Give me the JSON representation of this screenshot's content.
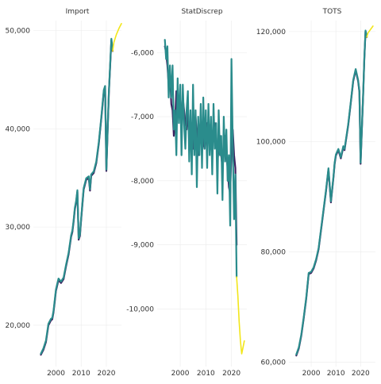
{
  "chart_data": [
    {
      "type": "line",
      "title": "Import",
      "xlabel": "",
      "ylabel": "",
      "x_ticks": [
        2000,
        2010,
        2020
      ],
      "y_ticks": [
        20000,
        30000,
        40000,
        50000
      ],
      "y_tick_labels": [
        "20,000",
        "30,000",
        "40,000",
        "50,000"
      ],
      "xlim": [
        1991,
        2026
      ],
      "ylim": [
        15800,
        51000
      ],
      "grid": true,
      "series": [
        {
          "role": "actual-dark",
          "color": "#3b1f5e",
          "x": [
            1994.0,
            1995.0,
            1996.0,
            1997.0,
            1998.0,
            1998.5,
            1999.0,
            2000.0,
            2001.0,
            2002.0,
            2003.0,
            2004.0,
            2005.0,
            2006.0,
            2006.5,
            2007.0,
            2007.5,
            2008.0,
            2008.5,
            2009.0,
            2009.5,
            2010.0,
            2011.0,
            2012.0,
            2013.0,
            2013.5,
            2014.0,
            2015.0,
            2016.0,
            2017.0,
            2018.0,
            2019.0,
            2019.5,
            2020.0,
            2021.0,
            2022.0,
            2022.5
          ],
          "values": [
            17000,
            17500,
            18300,
            20000,
            20500,
            20600,
            21300,
            23500,
            24600,
            24300,
            24700,
            26000,
            27200,
            29000,
            29500,
            30500,
            31800,
            32500,
            33600,
            28700,
            29100,
            30800,
            33800,
            34800,
            35000,
            33700,
            35200,
            35500,
            36500,
            38500,
            41000,
            43800,
            44200,
            35700,
            43500,
            49000,
            47900
          ]
        },
        {
          "role": "actual-teal",
          "color": "#2a8c8c",
          "x": [
            1994.0,
            1995.0,
            1996.0,
            1997.0,
            1998.0,
            1998.5,
            1999.0,
            2000.0,
            2001.0,
            2002.0,
            2003.0,
            2004.0,
            2005.0,
            2006.0,
            2006.5,
            2007.0,
            2007.5,
            2008.0,
            2008.5,
            2009.0,
            2009.5,
            2010.0,
            2011.0,
            2012.0,
            2013.0,
            2013.5,
            2014.0,
            2015.0,
            2016.0,
            2017.0,
            2018.0,
            2019.0,
            2019.5,
            2020.0,
            2021.0,
            2022.0,
            2022.5
          ],
          "values": [
            17100,
            17650,
            18450,
            20150,
            20650,
            20750,
            21450,
            23650,
            24750,
            24450,
            24850,
            26150,
            27350,
            29150,
            29650,
            30650,
            31950,
            32650,
            33750,
            28850,
            29250,
            30950,
            33950,
            34950,
            35150,
            33850,
            35350,
            35650,
            36650,
            38650,
            41150,
            43950,
            44350,
            35850,
            43650,
            49150,
            48050
          ]
        },
        {
          "role": "forecast",
          "color": "#f2e61a",
          "x": [
            2022.5,
            2023.0,
            2024.0,
            2025.0,
            2026.0
          ],
          "values": [
            47900,
            48800,
            49600,
            50200,
            50700
          ]
        }
      ]
    },
    {
      "type": "line",
      "title": "StatDiscrep",
      "xlabel": "",
      "ylabel": "",
      "x_ticks": [
        2000,
        2010,
        2020
      ],
      "y_ticks": [
        -10000,
        -9000,
        -8000,
        -7000,
        -6000
      ],
      "y_tick_labels": [
        "-10,000",
        "-9,000",
        "-8,000",
        "-7,000",
        "-6,000"
      ],
      "xlim": [
        1991,
        2026
      ],
      "ylim": [
        -10900,
        -5500
      ],
      "grid": true,
      "series": [
        {
          "role": "actual-dark",
          "color": "#3b1f5e",
          "x": [
            1994.0,
            1994.5,
            1995.0,
            1995.5,
            1996.0,
            1996.5,
            1997.0,
            1997.5,
            1998.0,
            1998.5,
            1999.0,
            1999.5,
            2000.0,
            2000.5,
            2001.0,
            2001.5,
            2002.0,
            2002.5,
            2003.0,
            2003.5,
            2004.0,
            2004.5,
            2005.0,
            2005.5,
            2006.0,
            2006.5,
            2007.0,
            2007.5,
            2008.0,
            2008.5,
            2009.0,
            2009.5,
            2010.0,
            2010.5,
            2011.0,
            2011.5,
            2012.0,
            2012.5,
            2013.0,
            2013.5,
            2014.0,
            2014.5,
            2015.0,
            2015.5,
            2016.0,
            2016.5,
            2017.0,
            2017.5,
            2018.0,
            2018.5,
            2019.0,
            2019.5,
            2020.0,
            2020.5,
            2021.0,
            2021.5,
            2022.0
          ],
          "values": [
            -5900,
            -6000,
            -6200,
            -6500,
            -6300,
            -6800,
            -6900,
            -7300,
            -7100,
            -6600,
            -6900,
            -6700,
            -6800,
            -7000,
            -6700,
            -6900,
            -7100,
            -7200,
            -6900,
            -7300,
            -7400,
            -7100,
            -7500,
            -7200,
            -7000,
            -7300,
            -7600,
            -7400,
            -7100,
            -7200,
            -7400,
            -7500,
            -7300,
            -7100,
            -7200,
            -7400,
            -7500,
            -7300,
            -7200,
            -7100,
            -7300,
            -7700,
            -7500,
            -7300,
            -7600,
            -7800,
            -7400,
            -7300,
            -7600,
            -7800,
            -8100,
            -8200,
            -7500,
            -7200,
            -7600,
            -7800,
            -9000
          ]
        },
        {
          "role": "actual-teal",
          "color": "#2a8c8c",
          "x": [
            1994.0,
            1994.5,
            1995.0,
            1995.5,
            1996.0,
            1996.5,
            1997.0,
            1997.5,
            1998.0,
            1998.5,
            1999.0,
            1999.5,
            2000.0,
            2000.5,
            2001.0,
            2001.5,
            2002.0,
            2002.5,
            2003.0,
            2003.5,
            2004.0,
            2004.5,
            2005.0,
            2005.5,
            2006.0,
            2006.5,
            2007.0,
            2007.5,
            2008.0,
            2008.5,
            2009.0,
            2009.5,
            2010.0,
            2010.5,
            2011.0,
            2011.5,
            2012.0,
            2012.5,
            2013.0,
            2013.5,
            2014.0,
            2014.5,
            2015.0,
            2015.5,
            2016.0,
            2016.5,
            2017.0,
            2017.5,
            2018.0,
            2018.5,
            2019.0,
            2019.5,
            2020.0,
            2020.5,
            2021.0,
            2021.5,
            2022.0
          ],
          "values": [
            -5800,
            -6100,
            -5900,
            -6700,
            -6200,
            -6700,
            -6200,
            -7200,
            -6900,
            -7600,
            -6400,
            -7100,
            -6500,
            -7600,
            -6500,
            -7100,
            -7500,
            -6900,
            -6600,
            -7700,
            -6900,
            -7900,
            -6500,
            -7600,
            -6900,
            -8100,
            -7000,
            -7600,
            -6800,
            -7800,
            -6700,
            -7500,
            -6900,
            -7800,
            -6800,
            -7600,
            -7000,
            -7900,
            -6800,
            -7500,
            -7100,
            -8200,
            -6900,
            -7600,
            -7300,
            -8300,
            -7000,
            -7700,
            -7200,
            -8000,
            -7600,
            -8700,
            -6100,
            -7400,
            -8600,
            -7900,
            -9500
          ]
        },
        {
          "role": "forecast",
          "color": "#f2e61a",
          "x": [
            2022.0,
            2022.5,
            2023.0,
            2023.5,
            2024.0,
            2024.5,
            2025.0
          ],
          "values": [
            -9500,
            -9800,
            -10200,
            -10500,
            -10700,
            -10600,
            -10500
          ]
        }
      ]
    },
    {
      "type": "line",
      "title": "TOTS",
      "xlabel": "",
      "ylabel": "",
      "x_ticks": [
        2000,
        2010,
        2020
      ],
      "y_ticks": [
        60000,
        80000,
        100000,
        120000
      ],
      "y_tick_labels": [
        "60,000",
        "80,000",
        "100,000",
        "120,000"
      ],
      "xlim": [
        1991,
        2026
      ],
      "ylim": [
        59200,
        122000
      ],
      "grid": true,
      "series": [
        {
          "role": "actual-dark",
          "color": "#3b1f5e",
          "x": [
            1994.0,
            1995.0,
            1996.0,
            1997.0,
            1998.0,
            1999.0,
            2000.0,
            2001.0,
            2002.0,
            2003.0,
            2004.0,
            2005.0,
            2006.0,
            2007.0,
            2008.0,
            2009.0,
            2009.5,
            2010.0,
            2011.0,
            2012.0,
            2013.0,
            2013.5,
            2014.0,
            2015.0,
            2016.0,
            2017.0,
            2018.0,
            2019.0,
            2019.5,
            2020.0,
            2021.0,
            2021.5,
            2022.0,
            2022.5
          ],
          "values": [
            61200,
            62500,
            64800,
            68000,
            71500,
            76000,
            76200,
            77000,
            78500,
            80500,
            84000,
            87500,
            91000,
            95000,
            89000,
            93500,
            96000,
            97500,
            98500,
            97000,
            99000,
            98500,
            100000,
            103000,
            107000,
            111000,
            113000,
            111000,
            109000,
            96000,
            108000,
            115000,
            120000,
            119000
          ]
        },
        {
          "role": "actual-teal",
          "color": "#2a8c8c",
          "x": [
            1994.0,
            1995.0,
            1996.0,
            1997.0,
            1998.0,
            1999.0,
            2000.0,
            2001.0,
            2002.0,
            2003.0,
            2004.0,
            2005.0,
            2006.0,
            2007.0,
            2008.0,
            2009.0,
            2009.5,
            2010.0,
            2011.0,
            2012.0,
            2013.0,
            2013.5,
            2014.0,
            2015.0,
            2016.0,
            2017.0,
            2018.0,
            2019.0,
            2019.5,
            2020.0,
            2021.0,
            2021.5,
            2022.0,
            2022.5
          ],
          "values": [
            61400,
            62700,
            65000,
            68200,
            71700,
            76200,
            76400,
            77200,
            78700,
            80700,
            84200,
            87700,
            91200,
            95200,
            89200,
            93700,
            96200,
            97700,
            98700,
            97200,
            99200,
            98700,
            100200,
            103200,
            107200,
            111200,
            113200,
            111200,
            109200,
            96200,
            108200,
            115200,
            120200,
            119200
          ]
        },
        {
          "role": "forecast",
          "color": "#f2e61a",
          "x": [
            2022.5,
            2023.0,
            2024.0,
            2025.0
          ],
          "values": [
            119000,
            119800,
            120400,
            121000
          ]
        }
      ]
    }
  ]
}
